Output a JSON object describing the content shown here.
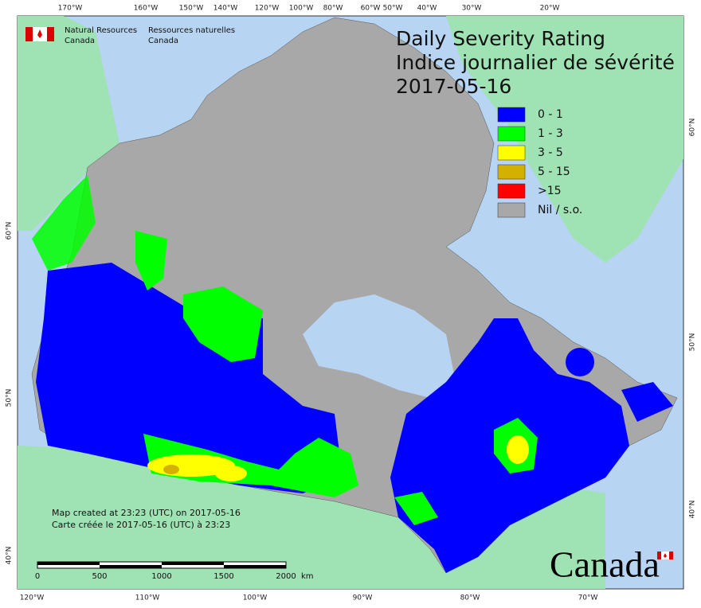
{
  "header": {
    "agency_en": [
      "Natural Resources",
      "Canada"
    ],
    "agency_fr": [
      "Ressources naturelles",
      "Canada"
    ]
  },
  "title": [
    "Daily Severity Rating",
    "Indice journalier de sévérité",
    "2017-05-16"
  ],
  "legend": [
    {
      "label": "0 - 1",
      "color": "#0000ff"
    },
    {
      "label": "1 - 3",
      "color": "#00ff00"
    },
    {
      "label": "3 - 5",
      "color": "#ffff00"
    },
    {
      "label": "5 - 15",
      "color": "#d4b000"
    },
    {
      "label": ">15",
      "color": "#ff0000"
    },
    {
      "label": "Nil / s.o.",
      "color": "#a8a8a8"
    }
  ],
  "graticule": {
    "top": [
      "170°W",
      "160°W",
      "150°W",
      "140°W",
      "120°W",
      "100°W",
      "80°W",
      "60°W",
      "50°W",
      "40°W",
      "30°W",
      "20°W"
    ],
    "bottom": [
      "120°W",
      "110°W",
      "100°W",
      "90°W",
      "80°W",
      "70°W"
    ],
    "left": [
      "60°N",
      "50°N",
      "40°N"
    ],
    "right": [
      "60°N",
      "50°N",
      "40°N"
    ]
  },
  "notes": [
    "Map created at 23:23 (UTC) on 2017-05-16",
    "Carte créée le 2017-05-16 (UTC) à 23:23"
  ],
  "scale_bar": {
    "labels": [
      "0",
      "500",
      "1000",
      "1500",
      "2000"
    ],
    "unit": "km"
  },
  "wordmark": "Canada"
}
